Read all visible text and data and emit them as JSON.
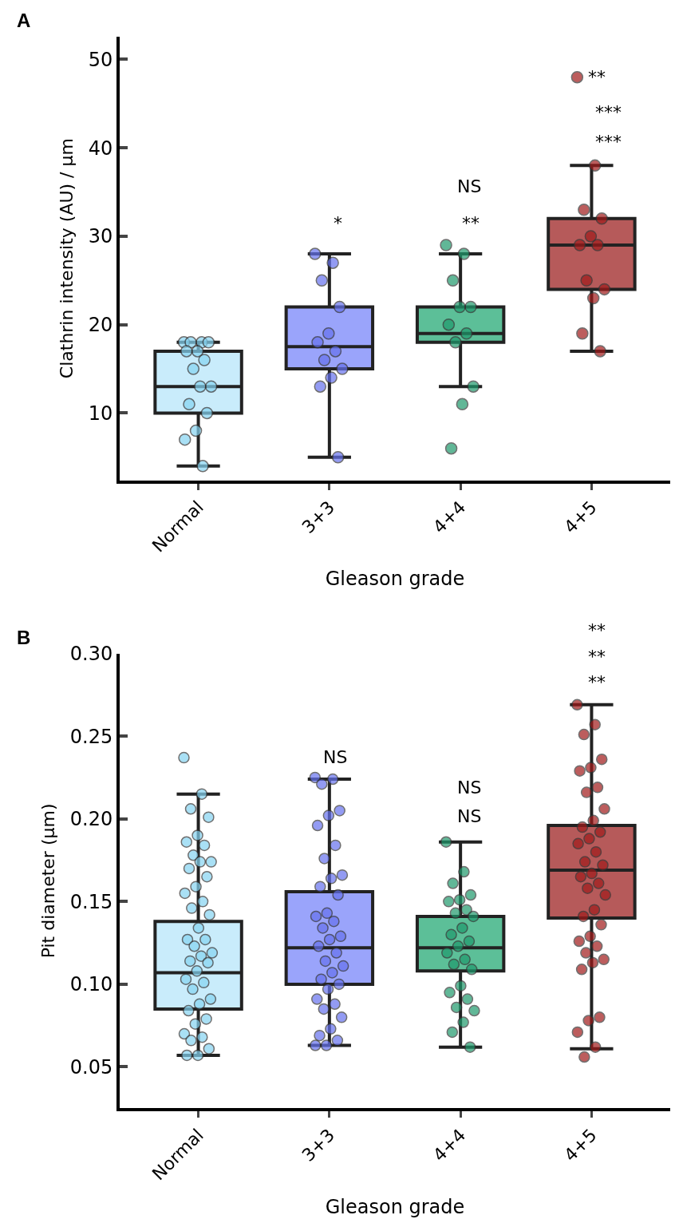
{
  "chart_data": [
    {
      "type": "box",
      "title": "A",
      "xlabel": "Gleason grade",
      "ylabel": "Clathrin intensity (AU) / µm",
      "categories": [
        "Normal",
        "3+3",
        "4+4",
        "4+5"
      ],
      "ylim": [
        2.4,
        52.6
      ],
      "yticks": [
        10,
        20,
        30,
        40,
        50
      ],
      "series": [
        {
          "colors": [
            "#c9ecfb",
            "#9aa4fb",
            "#5cbf98",
            "#b65a5a"
          ],
          "boxes": [
            {
              "low": 4,
              "q1": 10,
              "median": 13,
              "q3": 17,
              "high": 18
            },
            {
              "low": 5,
              "q1": 15,
              "median": 17.5,
              "q3": 22,
              "high": 28
            },
            {
              "low": 13,
              "q1": 18,
              "median": 19,
              "q3": 22,
              "high": 28
            },
            {
              "low": 17,
              "q1": 24,
              "median": 29,
              "q3": 32,
              "high": 38
            }
          ]
        },
        {
          "type": "scatter",
          "color": "#86d4f2",
          "x": [
            "Normal",
            "Normal",
            "Normal",
            "Normal",
            "Normal",
            "Normal",
            "Normal",
            "Normal",
            "Normal",
            "Normal",
            "Normal",
            "Normal",
            "Normal",
            "Normal",
            "Normal"
          ],
          "values": [
            18,
            18,
            18,
            18,
            17,
            17,
            16,
            15,
            13,
            13,
            11,
            10,
            8,
            7,
            4
          ]
        },
        {
          "type": "scatter",
          "color": "#6672ee",
          "x": [
            "3+3",
            "3+3",
            "3+3",
            "3+3",
            "3+3",
            "3+3",
            "3+3",
            "3+3",
            "3+3",
            "3+3",
            "3+3",
            "3+3"
          ],
          "values": [
            28,
            27,
            25,
            22,
            19,
            18,
            17,
            16,
            15,
            14,
            13,
            5
          ]
        },
        {
          "type": "scatter",
          "color": "#1f9a6c",
          "x": [
            "4+4",
            "4+4",
            "4+4",
            "4+4",
            "4+4",
            "4+4",
            "4+4",
            "4+4",
            "4+4",
            "4+4",
            "4+4"
          ],
          "values": [
            29,
            28,
            25,
            22,
            22,
            20,
            19,
            18,
            13,
            11,
            6
          ]
        },
        {
          "type": "scatter",
          "color": "#a01a1a",
          "x": [
            "4+5",
            "4+5",
            "4+5",
            "4+5",
            "4+5",
            "4+5",
            "4+5",
            "4+5",
            "4+5",
            "4+5",
            "4+5",
            "4+5"
          ],
          "values": [
            48,
            38,
            33,
            32,
            30,
            29,
            29,
            25,
            24,
            23,
            19,
            17
          ]
        }
      ],
      "annotations": [
        "*",
        "**",
        "NS",
        "***",
        "***",
        "**"
      ]
    },
    {
      "type": "box",
      "title": "B",
      "xlabel": "Gleason grade",
      "ylabel": "Pit diameter (µm)",
      "categories": [
        "Normal",
        "3+3",
        "4+4",
        "4+5"
      ],
      "ylim": [
        0.025,
        0.3
      ],
      "yticks": [
        {
          "value": 0.05,
          "label": "0.05"
        },
        {
          "value": 0.1,
          "label": "0.10"
        },
        {
          "value": 0.15,
          "label": "0.15"
        },
        {
          "value": 0.2,
          "label": "0.20"
        },
        {
          "value": 0.25,
          "label": "0.25"
        },
        {
          "value": 0.3,
          "label": "0.30"
        }
      ],
      "series": [
        {
          "colors": [
            "#c9ecfb",
            "#9aa4fb",
            "#5cbf98",
            "#b65a5a"
          ],
          "boxes": [
            {
              "low": 0.057,
              "q1": 0.085,
              "median": 0.107,
              "q3": 0.138,
              "high": 0.215
            },
            {
              "low": 0.063,
              "q1": 0.1,
              "median": 0.122,
              "q3": 0.156,
              "high": 0.224
            },
            {
              "low": 0.062,
              "q1": 0.108,
              "median": 0.122,
              "q3": 0.141,
              "high": 0.186
            },
            {
              "low": 0.061,
              "q1": 0.14,
              "median": 0.169,
              "q3": 0.196,
              "high": 0.269
            }
          ]
        },
        {
          "type": "scatter",
          "color": "#86d4f2",
          "x": [
            "Normal",
            "Normal",
            "Normal",
            "Normal",
            "Normal",
            "Normal",
            "Normal",
            "Normal",
            "Normal",
            "Normal",
            "Normal",
            "Normal",
            "Normal",
            "Normal",
            "Normal",
            "Normal",
            "Normal",
            "Normal",
            "Normal",
            "Normal",
            "Normal",
            "Normal",
            "Normal",
            "Normal",
            "Normal",
            "Normal",
            "Normal",
            "Normal",
            "Normal",
            "Normal",
            "Normal",
            "Normal",
            "Normal",
            "Normal",
            "Normal",
            "Normal",
            "Normal",
            "Normal",
            "Normal",
            "Normal"
          ],
          "values": [
            0.237,
            0.215,
            0.206,
            0.201,
            0.19,
            0.186,
            0.184,
            0.178,
            0.174,
            0.174,
            0.17,
            0.165,
            0.159,
            0.155,
            0.15,
            0.146,
            0.142,
            0.134,
            0.127,
            0.127,
            0.123,
            0.119,
            0.117,
            0.114,
            0.113,
            0.108,
            0.103,
            0.101,
            0.097,
            0.091,
            0.088,
            0.084,
            0.079,
            0.076,
            0.07,
            0.068,
            0.066,
            0.061,
            0.057,
            0.057
          ]
        },
        {
          "type": "scatter",
          "color": "#6672ee",
          "x": [
            "3+3",
            "3+3",
            "3+3",
            "3+3",
            "3+3",
            "3+3",
            "3+3",
            "3+3",
            "3+3",
            "3+3",
            "3+3",
            "3+3",
            "3+3",
            "3+3",
            "3+3",
            "3+3",
            "3+3",
            "3+3",
            "3+3",
            "3+3",
            "3+3",
            "3+3",
            "3+3",
            "3+3",
            "3+3",
            "3+3",
            "3+3",
            "3+3",
            "3+3",
            "3+3",
            "3+3",
            "3+3",
            "3+3",
            "3+3",
            "3+3"
          ],
          "values": [
            0.225,
            0.224,
            0.221,
            0.205,
            0.202,
            0.196,
            0.184,
            0.176,
            0.166,
            0.164,
            0.159,
            0.154,
            0.143,
            0.141,
            0.138,
            0.134,
            0.129,
            0.127,
            0.123,
            0.119,
            0.114,
            0.111,
            0.107,
            0.103,
            0.1,
            0.097,
            0.091,
            0.088,
            0.085,
            0.08,
            0.073,
            0.069,
            0.066,
            0.063,
            0.063
          ]
        },
        {
          "type": "scatter",
          "color": "#1f9a6c",
          "x": [
            "4+4",
            "4+4",
            "4+4",
            "4+4",
            "4+4",
            "4+4",
            "4+4",
            "4+4",
            "4+4",
            "4+4",
            "4+4",
            "4+4",
            "4+4",
            "4+4",
            "4+4",
            "4+4",
            "4+4",
            "4+4",
            "4+4",
            "4+4",
            "4+4",
            "4+4",
            "4+4",
            "4+4",
            "4+4"
          ],
          "values": [
            0.186,
            0.168,
            0.161,
            0.154,
            0.151,
            0.15,
            0.145,
            0.143,
            0.141,
            0.134,
            0.13,
            0.126,
            0.123,
            0.119,
            0.115,
            0.112,
            0.109,
            0.099,
            0.095,
            0.091,
            0.086,
            0.084,
            0.077,
            0.071,
            0.062
          ]
        },
        {
          "type": "scatter",
          "color": "#a01a1a",
          "x": [
            "4+5",
            "4+5",
            "4+5",
            "4+5",
            "4+5",
            "4+5",
            "4+5",
            "4+5",
            "4+5",
            "4+5",
            "4+5",
            "4+5",
            "4+5",
            "4+5",
            "4+5",
            "4+5",
            "4+5",
            "4+5",
            "4+5",
            "4+5",
            "4+5",
            "4+5",
            "4+5",
            "4+5",
            "4+5",
            "4+5",
            "4+5",
            "4+5",
            "4+5",
            "4+5",
            "4+5",
            "4+5",
            "4+5",
            "4+5",
            "4+5",
            "4+5",
            "4+5"
          ],
          "values": [
            0.269,
            0.257,
            0.251,
            0.236,
            0.231,
            0.229,
            0.219,
            0.216,
            0.206,
            0.199,
            0.195,
            0.192,
            0.188,
            0.185,
            0.18,
            0.174,
            0.172,
            0.167,
            0.165,
            0.161,
            0.158,
            0.154,
            0.145,
            0.141,
            0.136,
            0.129,
            0.126,
            0.123,
            0.119,
            0.115,
            0.113,
            0.109,
            0.08,
            0.078,
            0.071,
            0.062,
            0.056
          ]
        }
      ],
      "annotations": [
        "NS",
        "NS",
        "NS",
        "**",
        "**",
        "**"
      ]
    }
  ]
}
